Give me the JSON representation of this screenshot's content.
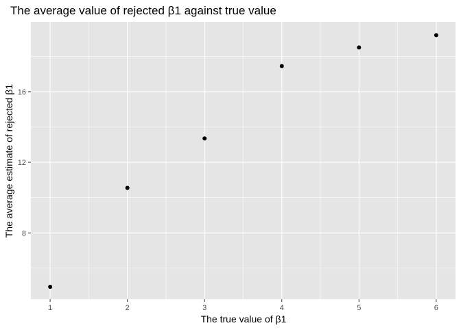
{
  "chart_data": {
    "type": "scatter",
    "title": "The average value of rejected β1 against true value",
    "xlabel": "The true value of β1",
    "ylabel": "The average estimate of rejected β1",
    "x": [
      1,
      2,
      3,
      4,
      5,
      6
    ],
    "y": [
      4.95,
      10.55,
      13.35,
      17.45,
      18.5,
      19.2
    ],
    "xlim": [
      0.75,
      6.25
    ],
    "ylim": [
      4.25,
      19.95
    ],
    "xticks": [
      1,
      2,
      3,
      4,
      5,
      6
    ],
    "xtick_labels": [
      "1",
      "2",
      "3",
      "4",
      "5",
      "6"
    ],
    "yticks": [
      8,
      12,
      16
    ],
    "ytick_labels": [
      "8",
      "12",
      "16"
    ],
    "grid": true,
    "legend": "none",
    "colors": {
      "panel_background": "#e5e5e5",
      "grid_line": "#ffffff",
      "point": "#000000",
      "tick_label": "#4d4d4d",
      "tick_mark": "#333333"
    }
  }
}
